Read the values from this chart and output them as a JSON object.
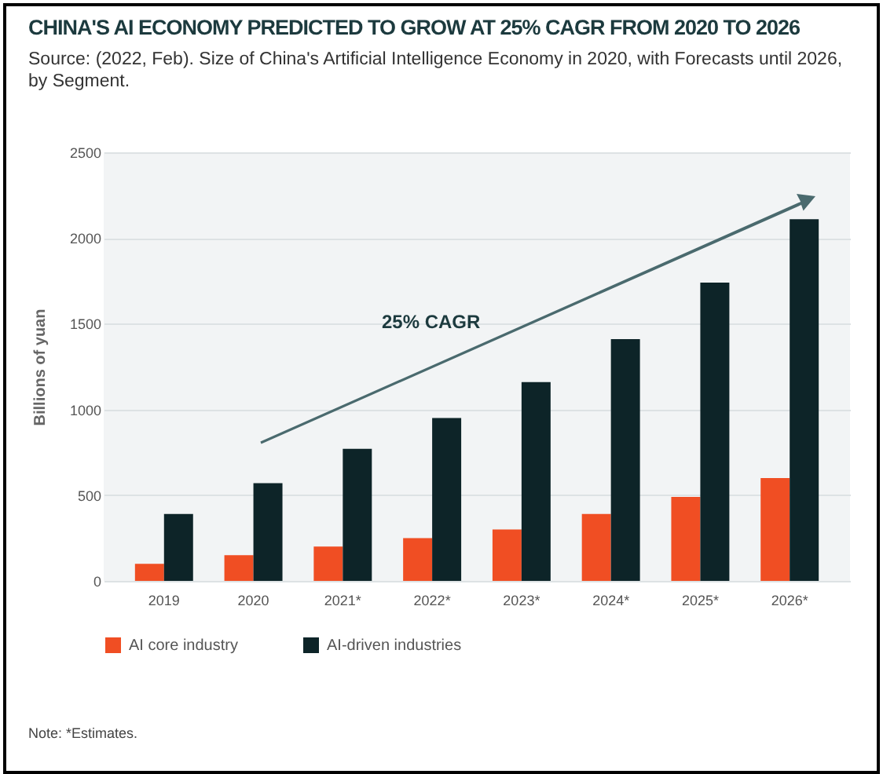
{
  "chart_data": {
    "type": "bar",
    "title": "CHINA'S AI ECONOMY PREDICTED TO GROW AT 25% CAGR FROM 2020 TO 2026",
    "subtitle": "Source: (2022, Feb). Size of China's Artificial Intelligence Economy in 2020, with Forecasts until 2026, by Segment.",
    "ylabel": "Billions of yuan",
    "annotations": [
      "25% CAGR",
      "Note: *Estimates."
    ],
    "categories": [
      "2019",
      "2020",
      "2021*",
      "2022*",
      "2023*",
      "2024*",
      "2025*",
      "2026*"
    ],
    "series": [
      {
        "name": "AI core industry",
        "color": "#f04e23",
        "values": [
          100,
          150,
          200,
          250,
          300,
          390,
          490,
          600
        ]
      },
      {
        "name": "AI-driven industries",
        "color": "#0d2428",
        "values": [
          390,
          570,
          770,
          950,
          1160,
          1410,
          1740,
          2110
        ]
      }
    ],
    "ylim": [
      0,
      2500
    ],
    "yticks": [
      0,
      500,
      1000,
      1500,
      2000,
      2500
    ],
    "grid": "y",
    "legend": "bottom"
  }
}
